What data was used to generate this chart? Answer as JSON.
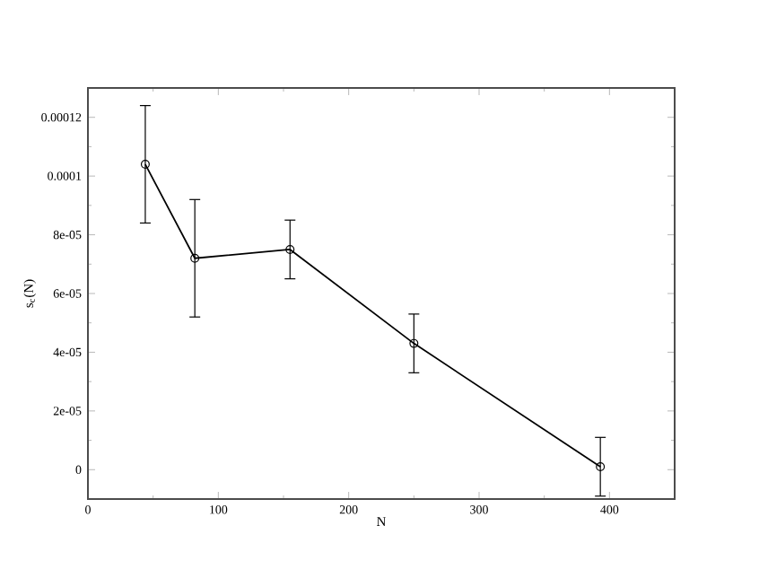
{
  "chart_data": {
    "type": "line",
    "xlabel": "N",
    "ylabel": "s$_{c}$(N)",
    "x": [
      44,
      82,
      155,
      250,
      393
    ],
    "series": [
      {
        "color": "#000000",
        "values": [
          0.000104,
          7.2e-05,
          7.5e-05,
          4.3e-05,
          1e-06
        ],
        "errors": [
          2e-05,
          2e-05,
          1e-05,
          1e-05,
          1e-05
        ]
      }
    ],
    "xlim": [
      0,
      450
    ],
    "ylim": [
      -1e-05,
      0.00013
    ],
    "xticks": [
      0,
      100,
      200,
      300,
      400
    ],
    "yticks": [
      {
        "value": 0,
        "label": "0"
      },
      {
        "value": 2e-05,
        "label": "2e-05"
      },
      {
        "value": 4e-05,
        "label": "4e-05"
      },
      {
        "value": 6e-05,
        "label": "6e-05"
      },
      {
        "value": 8e-05,
        "label": "8e-05"
      },
      {
        "value": 0.0001,
        "label": "0.0001"
      },
      {
        "value": 0.00012,
        "label": "0.00012"
      }
    ],
    "marker": "circle",
    "line_style": "solid"
  }
}
